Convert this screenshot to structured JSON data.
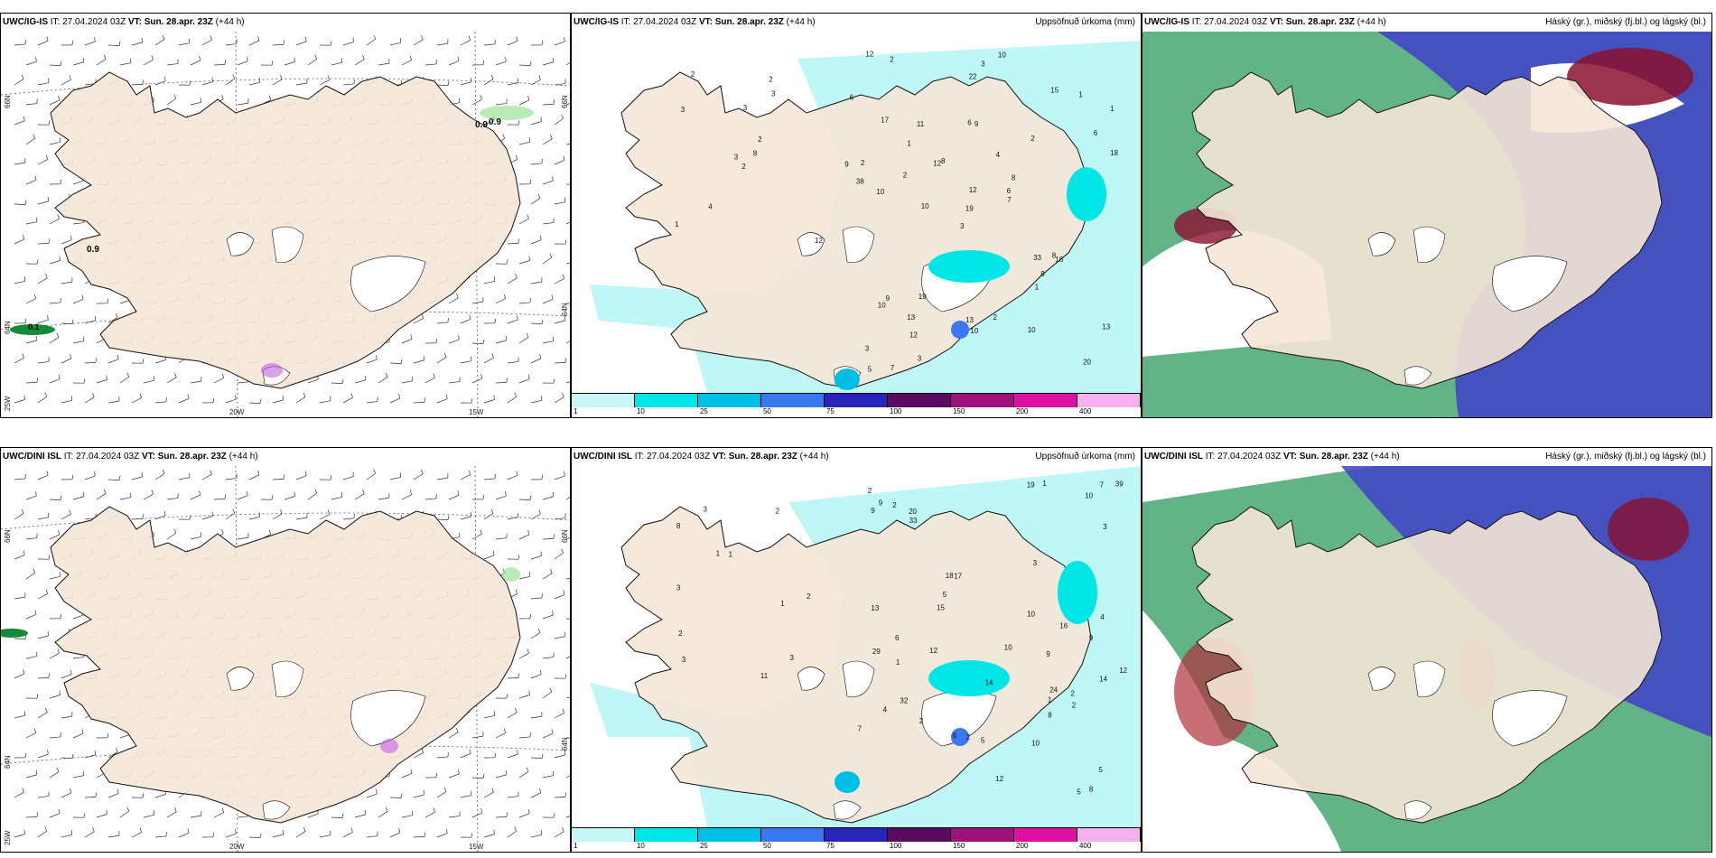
{
  "panels": {
    "p1": {
      "model": "UWC/IG-IS",
      "it": " IT: 27.04.2024 03Z ",
      "vt_label": "VT:",
      "vt": " Sun. 28.apr. 23Z",
      "lead": " (+44 h)",
      "right_title": ""
    },
    "p2": {
      "model": "UWC/IG-IS",
      "it": " IT: 27.04.2024 03Z ",
      "vt_label": "VT:",
      "vt": " Sun. 28.apr. 23Z",
      "lead": " (+44 h)",
      "right_title": "Uppsöfnuð úrkoma (mm)"
    },
    "p3": {
      "model": "UWC/IG-IS",
      "it": " IT: 27.04.2024 03Z ",
      "vt_label": "VT:",
      "vt": " Sun. 28.apr. 23Z",
      "lead": " (+44 h)",
      "right_title": "Háský (gr.), miðský (fj.bl.) og lágský (bl.)"
    },
    "p4": {
      "model": "UWC/DINI ISL",
      "it": " IT: 27.04.2024 03Z ",
      "vt_label": "VT:",
      "vt": " Sun. 28.apr. 23Z",
      "lead": " (+44 h)",
      "right_title": ""
    },
    "p5": {
      "model": "UWC/DINI ISL",
      "it": " IT: 27.04.2024 03Z ",
      "vt_label": "VT:",
      "vt": " Sun. 28.apr. 23Z",
      "lead": " (+44 h)",
      "right_title": "Uppsöfnuð úrkoma (mm)"
    },
    "p6": {
      "model": "UWC/DINI ISL",
      "it": " IT: 27.04.2024 03Z ",
      "vt_label": "VT:",
      "vt": " Sun. 28.apr. 23Z",
      "lead": " (+44 h)",
      "right_title": "Háský (gr.), miðský (fj.bl.) og lágský (bl.)"
    }
  },
  "grid_labels": {
    "lat_66": "66N",
    "lat_64": "64N",
    "lon_20": "20W",
    "lon_15": "15W",
    "lon_25": "25W"
  },
  "wind_values": {
    "p1_a": "0.9",
    "p1_b": "0.9",
    "p1_c": "0.9",
    "p1_d": "0.1"
  },
  "colorbar": {
    "ticks": [
      "1",
      "10",
      "25",
      "50",
      "75",
      "100",
      "150",
      "200",
      "400"
    ],
    "colors": [
      "#c8f7f7",
      "#00e6e6",
      "#00bfe6",
      "#3a78f0",
      "#2525b8",
      "#5a0a60",
      "#a0107a",
      "#e010a0",
      "#f5b0ee"
    ]
  },
  "precip_top": [
    "2",
    "3",
    "3",
    "1",
    "2",
    "4",
    "2",
    "3",
    "3",
    "8",
    "2",
    "12",
    "10",
    "1",
    "3",
    "2",
    "7",
    "6",
    "4",
    "9",
    "8",
    "3",
    "12",
    "9",
    "8",
    "16",
    "17",
    "22",
    "38",
    "33",
    "18",
    "19",
    "13",
    "12",
    "11",
    "15",
    "19",
    "20",
    "13",
    "8",
    "10",
    "12",
    "2",
    "1",
    "3",
    "9",
    "6",
    "5",
    "10",
    "7",
    "10",
    "6",
    "6",
    "8",
    "10",
    "13",
    "2",
    "12",
    "2",
    "1",
    "3",
    "10",
    "2",
    "1"
  ],
  "precip_bottom": [
    "1",
    "2",
    "3",
    "3",
    "1",
    "3",
    "2",
    "2",
    "1",
    "11",
    "8",
    "3",
    "9",
    "5",
    "6",
    "4",
    "14",
    "10",
    "17",
    "32",
    "39",
    "10",
    "15",
    "14",
    "19",
    "20",
    "24",
    "29",
    "33",
    "16",
    "12",
    "10",
    "5",
    "12",
    "9",
    "2",
    "1",
    "6",
    "5",
    "4",
    "3",
    "1",
    "8",
    "2",
    "2",
    "2",
    "7",
    "9",
    "10",
    "13",
    "12",
    "18",
    "7",
    "9",
    "8",
    "5",
    "3",
    "2",
    "1",
    "2"
  ],
  "cloud_colors": {
    "high": "#2e9a5e",
    "mid": "#4040c8",
    "low": "#8a1030"
  }
}
